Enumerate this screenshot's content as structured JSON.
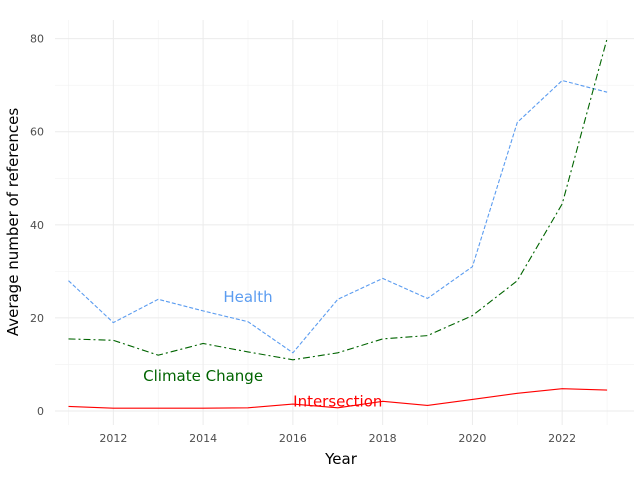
{
  "chart_data": {
    "type": "line",
    "title": "",
    "xlabel": "Year",
    "ylabel": "Average number of references",
    "xlim": [
      2010.7,
      2023.6
    ],
    "ylim": [
      -3,
      84
    ],
    "x_ticks": [
      2012,
      2014,
      2016,
      2018,
      2020,
      2022
    ],
    "y_ticks": [
      0,
      20,
      40,
      60,
      80
    ],
    "grid": true,
    "legend": "none",
    "x": [
      2011,
      2012,
      2013,
      2014,
      2015,
      2016,
      2017,
      2018,
      2019,
      2020,
      2021,
      2022,
      2023
    ],
    "series": [
      {
        "name": "Health",
        "color": "#5b9cf0",
        "dash": "dashed",
        "values": [
          28,
          19,
          24,
          21.5,
          19.2,
          12.5,
          24,
          28.5,
          24.2,
          31,
          62,
          71,
          68.5
        ],
        "label_anchor": [
          2015,
          24.5
        ]
      },
      {
        "name": "Climate Change",
        "color": "#006400",
        "dash": "dashdot",
        "values": [
          15.5,
          15.2,
          12,
          14.5,
          12.7,
          11,
          12.5,
          15.5,
          16.2,
          20.5,
          28,
          44.5,
          80
        ],
        "label_anchor": [
          2014,
          7.5
        ]
      },
      {
        "name": "Intersection",
        "color": "#ff0000",
        "dash": "solid",
        "values": [
          1,
          0.6,
          0.6,
          0.6,
          0.7,
          1.5,
          0.7,
          2.1,
          1.2,
          2.5,
          3.8,
          4.8,
          4.5
        ],
        "label_anchor": [
          2017,
          2
        ]
      }
    ]
  }
}
